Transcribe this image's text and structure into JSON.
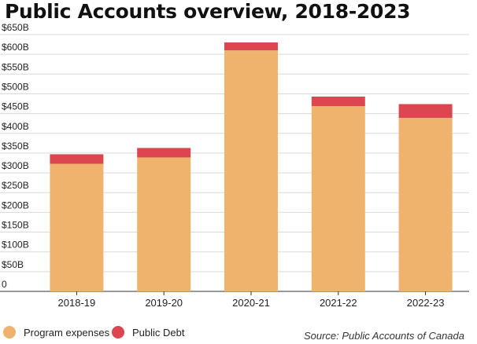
{
  "chart_data": {
    "type": "bar",
    "stacked": true,
    "title": "Public Accounts overview, 2018-2023",
    "xlabel": "",
    "ylabel": "",
    "categories": [
      "2018-19",
      "2019-20",
      "2020-21",
      "2021-22",
      "2022-23"
    ],
    "series": [
      {
        "name": "Program expenses",
        "color": "#F0B36E",
        "values": [
          323,
          339,
          610,
          469,
          439
        ]
      },
      {
        "name": "Public Debt",
        "color": "#DC4650",
        "values": [
          24,
          24,
          20,
          24,
          35
        ]
      }
    ],
    "ylim": [
      0,
      650
    ],
    "yticks": [
      0,
      50,
      100,
      150,
      200,
      250,
      300,
      350,
      400,
      450,
      500,
      550,
      600,
      650
    ],
    "ytick_labels": [
      "0",
      "$50B",
      "$100B",
      "$150B",
      "$200B",
      "$250B",
      "$300B",
      "$350B",
      "$400B",
      "$450B",
      "$500B",
      "$550B",
      "$600B",
      "$650B"
    ],
    "grid": true,
    "legend_position": "bottom-left",
    "source": "Source: Public Accounts of Canada"
  }
}
